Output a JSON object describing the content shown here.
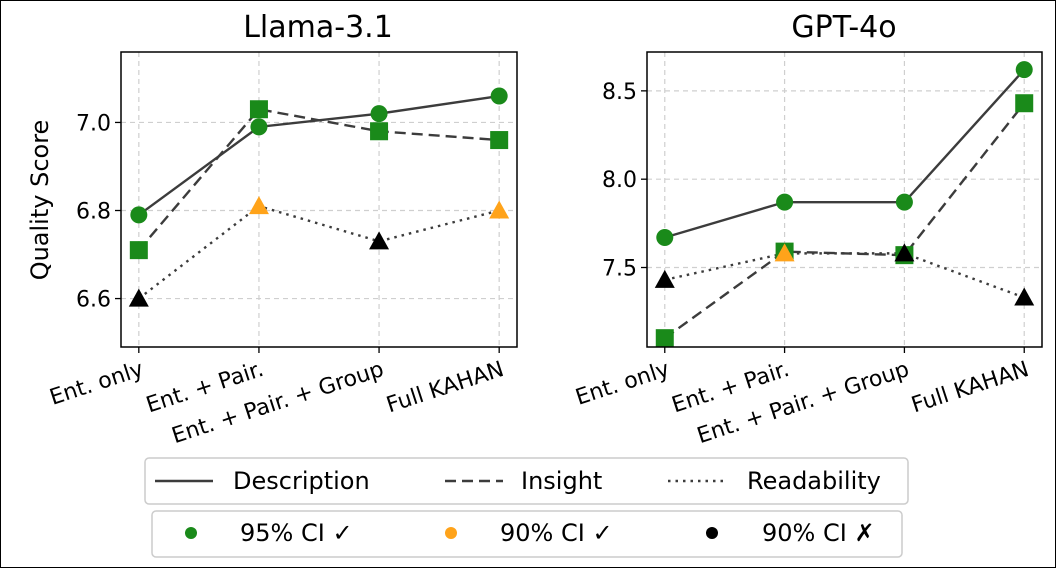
{
  "chart_data": [
    {
      "type": "line",
      "title": "Llama-3.1",
      "ylabel": "Quality Score",
      "categories": [
        "Ent. only",
        "Ent. + Pair.",
        "Ent. + Pair. + Group",
        "Full KAHAN"
      ],
      "yticks": [
        "6.6",
        "6.8",
        "7.0"
      ],
      "ylim": [
        6.49,
        7.16
      ],
      "grid": true,
      "series": [
        {
          "name": "Description",
          "line": "solid",
          "marker": "circle",
          "values": [
            6.79,
            6.99,
            7.02,
            7.06
          ],
          "significance": [
            "95",
            "95",
            "95",
            "95"
          ]
        },
        {
          "name": "Insight",
          "line": "dashed",
          "marker": "square",
          "values": [
            6.71,
            7.03,
            6.98,
            6.96
          ],
          "significance": [
            "95",
            "95",
            "95",
            "95"
          ]
        },
        {
          "name": "Readability",
          "line": "dotted",
          "marker": "triangle",
          "values": [
            6.6,
            6.81,
            6.73,
            6.8
          ],
          "significance": [
            "none",
            "90",
            "none",
            "90"
          ]
        }
      ]
    },
    {
      "type": "line",
      "title": "GPT-4o",
      "ylabel": "",
      "categories": [
        "Ent. only",
        "Ent. + Pair.",
        "Ent. + Pair. + Group",
        "Full KAHAN"
      ],
      "yticks": [
        "7.5",
        "8.0",
        "8.5"
      ],
      "ylim": [
        7.05,
        8.72
      ],
      "grid": true,
      "series": [
        {
          "name": "Description",
          "line": "solid",
          "marker": "circle",
          "values": [
            7.67,
            7.87,
            7.87,
            8.62
          ],
          "significance": [
            "95",
            "95",
            "95",
            "95"
          ]
        },
        {
          "name": "Insight",
          "line": "dashed",
          "marker": "square",
          "values": [
            7.1,
            7.59,
            7.57,
            8.43
          ],
          "significance": [
            "95",
            "95",
            "95",
            "95"
          ]
        },
        {
          "name": "Readability",
          "line": "dotted",
          "marker": "triangle",
          "values": [
            7.43,
            7.58,
            7.58,
            7.33
          ],
          "significance": [
            "none",
            "90",
            "none",
            "none"
          ]
        }
      ]
    }
  ],
  "legend": {
    "lines": [
      {
        "label": "Description",
        "style": "solid"
      },
      {
        "label": "Insight",
        "style": "dashed"
      },
      {
        "label": "Readability",
        "style": "dotted"
      }
    ],
    "markers": [
      {
        "label": "95% CI ✓",
        "color": "#1a8a1a"
      },
      {
        "label": "90% CI ✓",
        "color": "#ffa31a"
      },
      {
        "label": "90% CI ✗",
        "color": "#000000"
      }
    ]
  },
  "colors": {
    "sig95": "#1a8a1a",
    "sig90": "#ffa31a",
    "none": "#000000",
    "line": "#3c3c3c",
    "grid": "#cfcfcf"
  }
}
